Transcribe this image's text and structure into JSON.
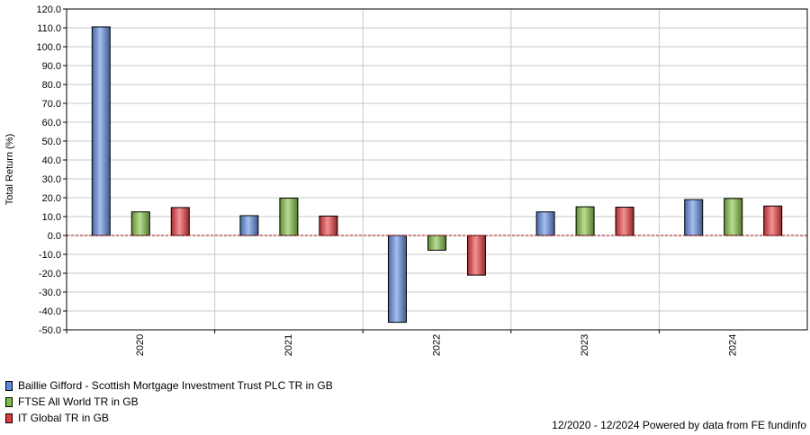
{
  "chart_data": {
    "type": "bar",
    "title": "",
    "xlabel": "",
    "ylabel": "Total Return (%)",
    "ylim": [
      -50,
      120
    ],
    "ytick_step": 10,
    "grid": true,
    "legend_position": "bottom-left",
    "categories": [
      "2020",
      "2021",
      "2022",
      "2023",
      "2024"
    ],
    "series": [
      {
        "name": "Baillie Gifford - Scottish Mortgage Investment Trust PLC TR in GB",
        "color": "#5b8be0",
        "values": [
          110.5,
          10.5,
          -46.0,
          12.5,
          19.0
        ]
      },
      {
        "name": "FTSE All World TR in GB",
        "color": "#7fbf3f",
        "values": [
          12.5,
          19.8,
          -7.8,
          15.2,
          19.6
        ]
      },
      {
        "name": "IT Global TR in GB",
        "color": "#e8383b",
        "values": [
          14.8,
          10.3,
          -21.0,
          15.0,
          15.6
        ]
      }
    ],
    "zero_line_color": "#a00000"
  },
  "footer": {
    "text": "12/2020 - 12/2024 Powered by data from FE fundinfo"
  }
}
